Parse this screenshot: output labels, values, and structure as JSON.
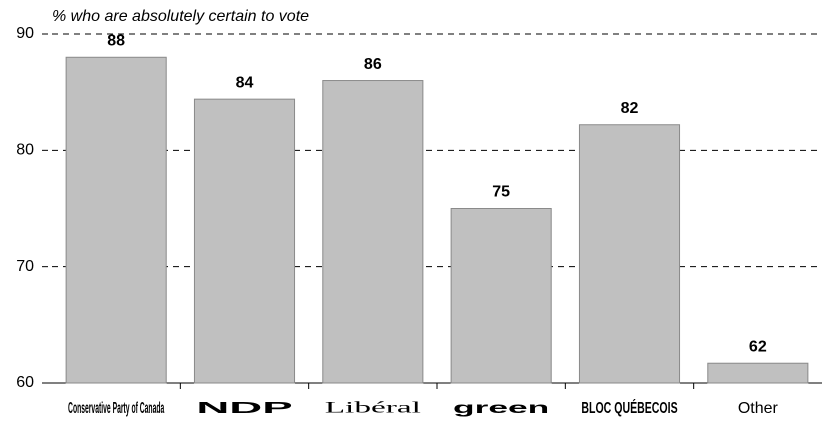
{
  "chart_data": {
    "type": "bar",
    "subtitle": "% who are absolutely certain to vote",
    "categories": [
      "Conservative Party of Canada",
      "NDP",
      "Libéral",
      "green",
      "BLOC QUÉBECOIS",
      "Other"
    ],
    "values": [
      88,
      84.4,
      86,
      75,
      82.2,
      61.7
    ],
    "value_labels": [
      "88",
      "84",
      "86",
      "75",
      "82",
      "62"
    ],
    "category_colors": [
      "#1a5aa6",
      "#f58220",
      "#d71920",
      "#3d9b35",
      "#1f5fa8",
      "#000000"
    ],
    "color": "#c0c0c0",
    "ylim": [
      60,
      90
    ],
    "yticks": [
      60,
      70,
      80,
      90
    ],
    "grid": true
  }
}
